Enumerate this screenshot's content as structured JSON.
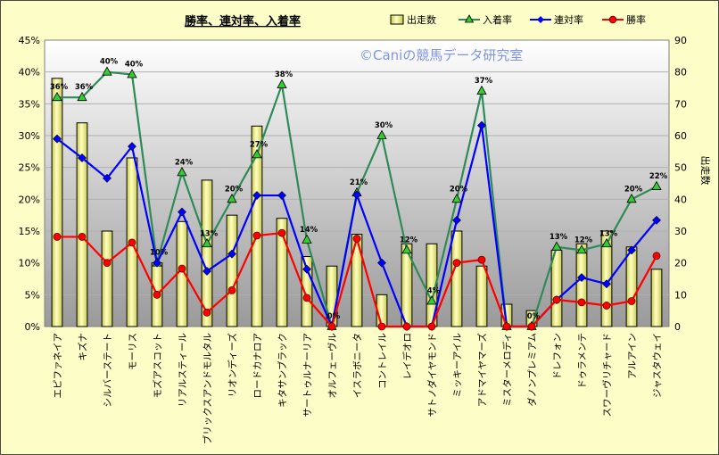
{
  "chart_data": {
    "type": "bar",
    "title": "勝率、連対率、入着率",
    "watermark": "©Caniの競馬データ研究室",
    "y_left": {
      "min": 0,
      "max": 45,
      "step": 5,
      "unit": "%"
    },
    "y_right": {
      "min": 0,
      "max": 90,
      "step": 10,
      "label": "出走数"
    },
    "grid": true,
    "legend_position": "top-right",
    "categories": [
      "エピファネイア",
      "キズナ",
      "シルバーステート",
      "モーリス",
      "モズアスコット",
      "リアルスティール",
      "ブリックスアンドモルタル",
      "リオンディーズ",
      "ロードカナロア",
      "キタサンブラック",
      "サートゥルナーリア",
      "オルフェーヴル",
      "イスラボニータ",
      "コントレイル",
      "レイデオロ",
      "サトノダイヤモンド",
      "ミッキーアイル",
      "アドマイヤマーズ",
      "ミスターメロディ",
      "ダノンプレミアム",
      "ドレフォン",
      "ドゥラメンテ",
      "スワーヴリチャード",
      "アルアイン",
      "ジャスタウェイ"
    ],
    "series": [
      {
        "name": "出走数",
        "type": "bar",
        "axis": "right",
        "color": "#ffff99",
        "values": [
          78,
          64,
          30,
          53,
          20,
          33,
          46,
          35,
          63,
          34,
          22,
          19,
          29,
          10,
          26,
          26,
          30,
          19,
          7,
          5,
          24,
          26,
          30,
          25,
          18
        ]
      },
      {
        "name": "入着率",
        "type": "line",
        "axis": "left",
        "color": "#2e8b57",
        "values": [
          36,
          36,
          40,
          39.6,
          10,
          24.2,
          13,
          20,
          27,
          38,
          13.6,
          0,
          21,
          30,
          12,
          4,
          20,
          37,
          0,
          0,
          12.5,
          12,
          13,
          20,
          22
        ]
      },
      {
        "name": "連対率",
        "type": "line",
        "axis": "left",
        "color": "#0000ff",
        "values": [
          29.5,
          26.5,
          23.3,
          28.3,
          10,
          18,
          8.7,
          11.4,
          20.6,
          20.6,
          9,
          0,
          20.7,
          10,
          0,
          0,
          16.7,
          31.6,
          0,
          0,
          4.2,
          7.7,
          6.7,
          12,
          16.7
        ]
      },
      {
        "name": "勝率",
        "type": "line",
        "axis": "left",
        "color": "#ff0000",
        "values": [
          14.1,
          14.1,
          10,
          13.2,
          5,
          9.1,
          2.2,
          5.7,
          14.3,
          14.7,
          4.5,
          0,
          13.8,
          0,
          0,
          0,
          10,
          10.5,
          0,
          0,
          4.2,
          3.8,
          3.3,
          4,
          11.1
        ]
      }
    ],
    "data_labels": {
      "series": "入着率",
      "texts": [
        "36%",
        "36%",
        "40%",
        "40%",
        "10%",
        "24%",
        "13%",
        "20%",
        "27%",
        "38%",
        "14%",
        "0%",
        "21%",
        "30%",
        "12%",
        "4%",
        "20%",
        "37%",
        "",
        "0%",
        "13%",
        "12%",
        "13%",
        "20%",
        "22%"
      ]
    }
  }
}
